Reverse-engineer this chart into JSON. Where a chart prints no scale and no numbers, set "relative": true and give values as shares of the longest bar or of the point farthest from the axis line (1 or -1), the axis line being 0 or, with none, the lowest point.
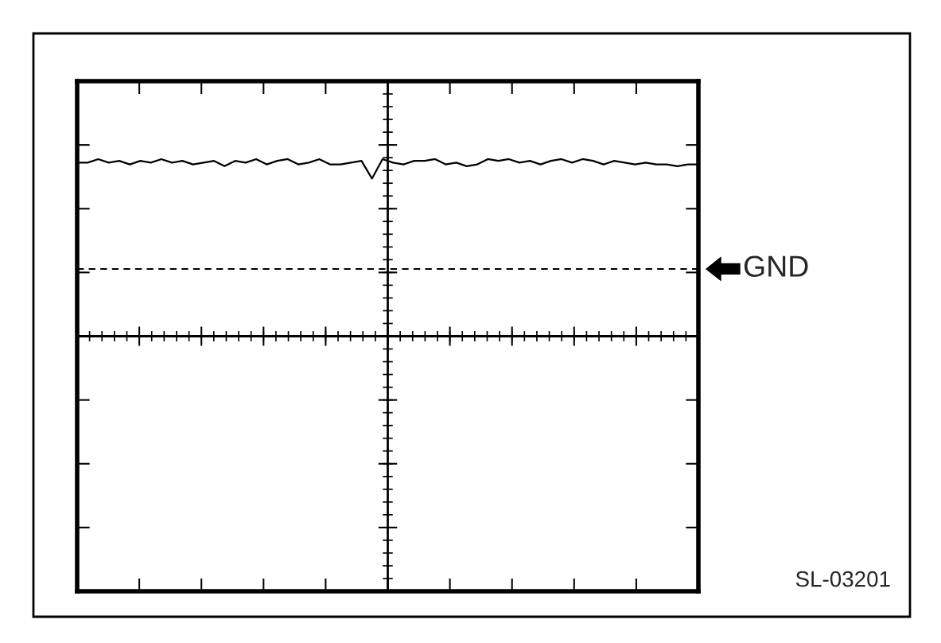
{
  "chart_data": {
    "type": "line",
    "relative": true,
    "legend": false,
    "categories": [
      null,
      null,
      null,
      null,
      null,
      null,
      null,
      null,
      null,
      null,
      null,
      null,
      null,
      null,
      null,
      null,
      null,
      null,
      null,
      null,
      null,
      null,
      null,
      null,
      null,
      null,
      null,
      null,
      null,
      null,
      null,
      null,
      null,
      null,
      null,
      null,
      null,
      null,
      null,
      null,
      null,
      null,
      null,
      null,
      null,
      null,
      null,
      null,
      null,
      null,
      null,
      null,
      null,
      null,
      null,
      null,
      null,
      null,
      null,
      null
    ],
    "series": [
      {
        "color": "#000000",
        "values": [
          0.98,
          0.98,
          1.0,
          0.98,
          0.99,
          0.97,
          0.99,
          0.98,
          1.0,
          0.98,
          0.99,
          0.97,
          0.98,
          0.99,
          0.96,
          0.99,
          0.98,
          1.0,
          0.97,
          0.99,
          1.0,
          0.97,
          0.98,
          1.0,
          0.97,
          0.97,
          0.98,
          0.99,
          0.89,
          1.0,
          0.98,
          0.97,
          0.99,
          0.99,
          1.0,
          0.97,
          0.98,
          0.96,
          0.97,
          1.0,
          0.99,
          1.0,
          0.98,
          0.99,
          0.97,
          0.99,
          1.0,
          0.98,
          1.0,
          0.99,
          0.97,
          0.99,
          0.98,
          0.97,
          0.98,
          0.97,
          0.97,
          0.96,
          0.97,
          0.97
        ]
      }
    ],
    "ref_lines": [
      {
        "axis": "y",
        "value": 0.38,
        "label": "GND",
        "color": "#000000",
        "line_style": "dashed"
      }
    ],
    "annotations": [
      "SL-03201"
    ]
  }
}
